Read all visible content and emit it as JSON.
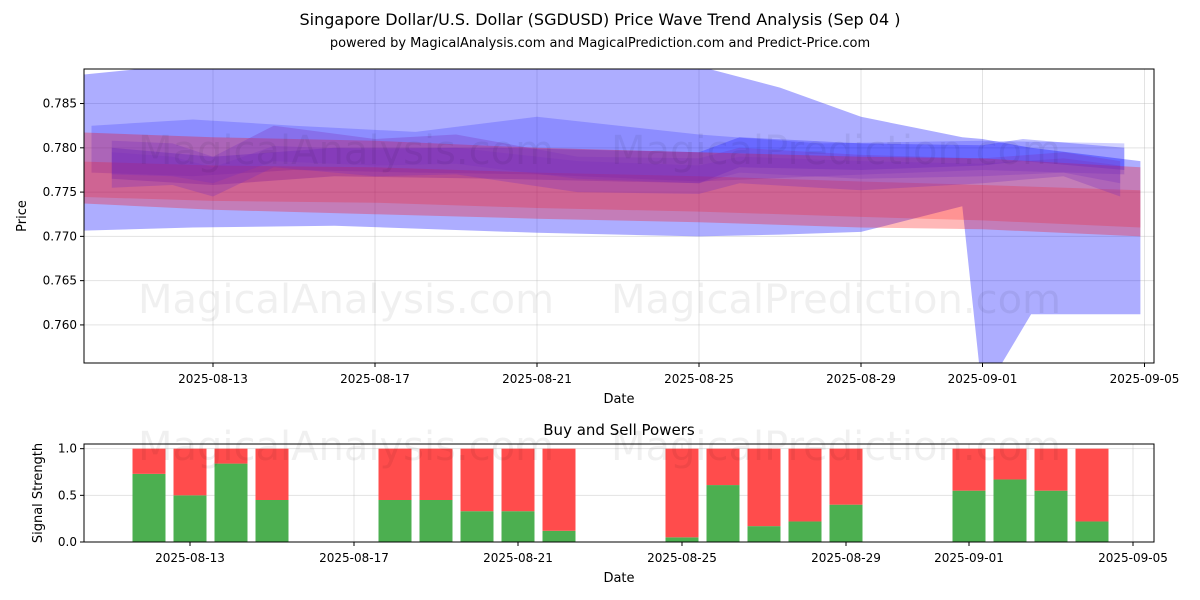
{
  "header": {
    "title": "Singapore Dollar/U.S. Dollar (SGDUSD) Price Wave Trend Analysis (Sep 04 )",
    "subtitle": "powered by MagicalAnalysis.com and MagicalPrediction.com and Predict-Price.com"
  },
  "watermarks": [
    "MagicalAnalysis.com",
    "MagicalPrediction.com"
  ],
  "colors": {
    "blue": "#0000ff",
    "red": "#ff0000",
    "purple": "#7b2fbe",
    "buy": "#4caf50",
    "sell": "#ff4c4c"
  },
  "chart_data": [
    {
      "type": "area",
      "xlabel": "Date",
      "ylabel": "Price",
      "x_dates": [
        "2025-08-10",
        "2025-08-11",
        "2025-08-12",
        "2025-08-13",
        "2025-08-14",
        "2025-08-15",
        "2025-08-16",
        "2025-08-17",
        "2025-08-18",
        "2025-08-19",
        "2025-08-20",
        "2025-08-21",
        "2025-08-22",
        "2025-08-23",
        "2025-08-24",
        "2025-08-25",
        "2025-08-26",
        "2025-08-27",
        "2025-08-28",
        "2025-08-29",
        "2025-08-30",
        "2025-08-31",
        "2025-09-01",
        "2025-09-02",
        "2025-09-03",
        "2025-09-04",
        "2025-09-05"
      ],
      "x_ticks": [
        "2025-08-13",
        "2025-08-17",
        "2025-08-21",
        "2025-08-25",
        "2025-08-29",
        "2025-09-01",
        "2025-09-05"
      ],
      "y_ticks": [
        "0.760",
        "0.765",
        "0.770",
        "0.775",
        "0.780",
        "0.785"
      ],
      "ylim": [
        0.7557,
        0.7889
      ],
      "series": [
        {
          "name": "wide-blue-band",
          "color": "blue",
          "opacity": 0.32,
          "x": [
            "2025-08-09.4",
            "2025-08-12.5",
            "2025-08-16",
            "2025-08-21",
            "2025-08-25",
            "2025-08-27",
            "2025-08-29",
            "2025-08-31.5",
            "2025-09-01",
            "2025-09-02.2",
            "2025-09-04.9"
          ],
          "upper": [
            0.7881,
            0.7895,
            0.7895,
            0.7895,
            0.7892,
            0.7868,
            0.7835,
            0.7812,
            0.781,
            0.78,
            0.7785
          ],
          "lower": [
            0.7706,
            0.771,
            0.7712,
            0.7704,
            0.77,
            0.7702,
            0.7705,
            0.7734,
            0.752,
            0.7612,
            0.7612
          ]
        },
        {
          "name": "upper-mid-band",
          "color": "blue",
          "opacity": 0.18,
          "x": [
            "2025-08-10",
            "2025-08-12.5",
            "2025-08-15",
            "2025-08-18",
            "2025-08-21",
            "2025-08-25",
            "2025-08-28",
            "2025-09-01",
            "2025-09-04.5"
          ],
          "upper": [
            0.7825,
            0.7832,
            0.7825,
            0.7818,
            0.7835,
            0.7815,
            0.7805,
            0.7808,
            0.7805
          ],
          "lower": [
            0.7772,
            0.7768,
            0.7775,
            0.7772,
            0.777,
            0.7762,
            0.7768,
            0.7775,
            0.777
          ]
        },
        {
          "name": "strong-blue-core",
          "color": "blue",
          "opacity": 0.25,
          "x": [
            "2025-08-10.5",
            "2025-08-13",
            "2025-08-16",
            "2025-08-20",
            "2025-08-25",
            "2025-08-26",
            "2025-08-29",
            "2025-09-01",
            "2025-09-02",
            "2025-09-04.5"
          ],
          "upper": [
            0.78,
            0.779,
            0.78,
            0.78,
            0.7795,
            0.7812,
            0.7805,
            0.7803,
            0.781,
            0.78
          ],
          "lower": [
            0.7765,
            0.7758,
            0.7768,
            0.7765,
            0.776,
            0.7778,
            0.7775,
            0.778,
            0.7785,
            0.7775
          ]
        },
        {
          "name": "wide-red-band",
          "color": "red",
          "opacity": 0.28,
          "x": [
            "2025-08-09.4",
            "2025-08-13",
            "2025-08-17",
            "2025-08-21",
            "2025-08-25",
            "2025-08-29",
            "2025-09-01",
            "2025-09-04.9"
          ],
          "upper": [
            0.7818,
            0.7812,
            0.7808,
            0.78,
            0.7795,
            0.779,
            0.7788,
            0.7778
          ],
          "lower": [
            0.7738,
            0.773,
            0.7725,
            0.772,
            0.7716,
            0.771,
            0.7708,
            0.77
          ]
        },
        {
          "name": "mid-red-band",
          "color": "red",
          "opacity": 0.2,
          "x": [
            "2025-08-09.4",
            "2025-08-13",
            "2025-08-17",
            "2025-08-21",
            "2025-08-25",
            "2025-08-29",
            "2025-09-01",
            "2025-09-04.9"
          ],
          "upper": [
            0.7785,
            0.778,
            0.7778,
            0.7772,
            0.7768,
            0.7762,
            0.7758,
            0.7752
          ],
          "lower": [
            0.7745,
            0.774,
            0.7738,
            0.7732,
            0.7728,
            0.7722,
            0.7718,
            0.771
          ]
        },
        {
          "name": "purple-wave-1",
          "color": "purple",
          "opacity": 0.3,
          "x": [
            "2025-08-10.5",
            "2025-08-12",
            "2025-08-13",
            "2025-08-14.5",
            "2025-08-17",
            "2025-08-19",
            "2025-08-22",
            "2025-08-25",
            "2025-08-26",
            "2025-08-29",
            "2025-09-01",
            "2025-09-03",
            "2025-09-04.4"
          ],
          "upper": [
            0.7808,
            0.7805,
            0.779,
            0.7825,
            0.781,
            0.7815,
            0.779,
            0.7788,
            0.78,
            0.7792,
            0.7788,
            0.7795,
            0.7785
          ],
          "lower": [
            0.7755,
            0.7758,
            0.7745,
            0.7778,
            0.7768,
            0.777,
            0.775,
            0.7748,
            0.776,
            0.7752,
            0.776,
            0.7768,
            0.7745
          ]
        },
        {
          "name": "purple-wave-2",
          "color": "purple",
          "opacity": 0.28,
          "x": [
            "2025-08-10.5",
            "2025-08-12",
            "2025-08-13",
            "2025-08-14.5",
            "2025-08-17",
            "2025-08-19",
            "2025-08-22",
            "2025-08-25",
            "2025-08-26",
            "2025-08-29",
            "2025-09-01",
            "2025-09-03",
            "2025-09-04.4"
          ],
          "upper": [
            0.7795,
            0.779,
            0.7778,
            0.7802,
            0.7798,
            0.78,
            0.7785,
            0.778,
            0.779,
            0.7785,
            0.7782,
            0.7788,
            0.778
          ],
          "lower": [
            0.777,
            0.7768,
            0.776,
            0.7785,
            0.778,
            0.7782,
            0.7765,
            0.776,
            0.7772,
            0.7765,
            0.7768,
            0.7772,
            0.776
          ]
        }
      ]
    },
    {
      "type": "bar",
      "title": "Buy and Sell Powers",
      "xlabel": "Date",
      "ylabel": "Signal Strength",
      "x_ticks": [
        "2025-08-13",
        "2025-08-17",
        "2025-08-21",
        "2025-08-25",
        "2025-08-29",
        "2025-09-01",
        "2025-09-05"
      ],
      "y_ticks": [
        "0.0",
        "0.5",
        "1.0"
      ],
      "ylim": [
        0,
        1.05
      ],
      "categories": [
        "2025-08-12",
        "2025-08-13",
        "2025-08-14",
        "2025-08-15",
        "2025-08-18",
        "2025-08-19",
        "2025-08-20",
        "2025-08-21",
        "2025-08-22",
        "2025-08-25",
        "2025-08-26",
        "2025-08-27",
        "2025-08-28",
        "2025-08-29",
        "2025-09-01",
        "2025-09-02",
        "2025-09-03",
        "2025-09-04"
      ],
      "series": [
        {
          "name": "Buy",
          "color": "buy",
          "values": [
            0.73,
            0.5,
            0.84,
            0.45,
            0.45,
            0.45,
            0.33,
            0.33,
            0.12,
            0.05,
            0.61,
            0.17,
            0.22,
            0.4,
            0.55,
            0.67,
            0.55,
            0.22
          ]
        },
        {
          "name": "Sell",
          "color": "sell",
          "values": [
            0.27,
            0.5,
            0.16,
            0.55,
            0.55,
            0.55,
            0.67,
            0.67,
            0.88,
            0.95,
            0.39,
            0.83,
            0.78,
            0.6,
            0.45,
            0.33,
            0.45,
            0.78
          ]
        }
      ]
    }
  ]
}
